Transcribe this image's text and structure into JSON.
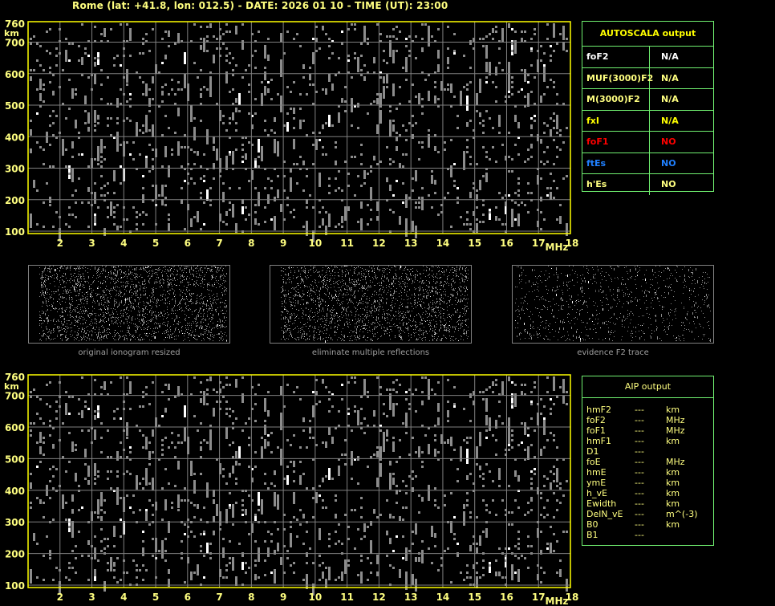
{
  "header": {
    "title": "Rome (lat: +41.8, lon: 012.5) - DATE: 2026 01 10 - TIME (UT): 23:00"
  },
  "colors": {
    "axis": "#ffff00",
    "grid": "#808080",
    "noise": "#8c8c8c",
    "table_border": "#70f070",
    "label": "#ffff80"
  },
  "chart_data": [
    {
      "type": "scatter",
      "name": "ionogram",
      "xlabel": "MHz",
      "ylabel": "km",
      "xlim": [
        1,
        18
      ],
      "ylim": [
        100,
        760
      ],
      "xticks": [
        "2",
        "3",
        "4",
        "5",
        "6",
        "7",
        "8",
        "9",
        "10",
        "11",
        "12",
        "13",
        "14",
        "15",
        "16",
        "17",
        "18"
      ],
      "yticks": [
        "100",
        "200",
        "300",
        "400",
        "500",
        "600",
        "700",
        "760"
      ],
      "grid": true
    },
    {
      "type": "scatter",
      "name": "ionogram-aip",
      "xlabel": "MHz",
      "ylabel": "km",
      "xlim": [
        1,
        18
      ],
      "ylim": [
        100,
        760
      ],
      "xticks": [
        "2",
        "3",
        "4",
        "5",
        "6",
        "7",
        "8",
        "9",
        "10",
        "11",
        "12",
        "13",
        "14",
        "15",
        "16",
        "17",
        "18"
      ],
      "yticks": [
        "100",
        "200",
        "300",
        "400",
        "500",
        "600",
        "700",
        "760"
      ],
      "grid": true
    }
  ],
  "thumbnails": [
    {
      "caption": "original ionogram resized"
    },
    {
      "caption": "eliminate multiple reflections"
    },
    {
      "caption": "evidence F2 trace"
    }
  ],
  "autoscala": {
    "title": "AUTOSCALA output",
    "rows": [
      {
        "param": "foF2",
        "value": "N/A",
        "color": "#ffffff",
        "vcolor": "#ffffff"
      },
      {
        "param": "MUF(3000)F2",
        "value": "N/A",
        "color": "#ffff80",
        "vcolor": "#ffff80"
      },
      {
        "param": "M(3000)F2",
        "value": "N/A",
        "color": "#ffff80",
        "vcolor": "#ffff80"
      },
      {
        "param": "fxI",
        "value": "N/A",
        "color": "#ffff00",
        "vcolor": "#ffff00"
      },
      {
        "param": "foF1",
        "value": "NO",
        "color": "#ff0000",
        "vcolor": "#ff0000"
      },
      {
        "param": "ftEs",
        "value": "NO",
        "color": "#2080ff",
        "vcolor": "#2080ff"
      },
      {
        "param": "h'Es",
        "value": "NO",
        "color": "#ffff80",
        "vcolor": "#ffff80"
      }
    ]
  },
  "aip": {
    "title": "AIP output",
    "rows": [
      {
        "param": "hmF2",
        "value": "---",
        "unit": "km"
      },
      {
        "param": "foF2",
        "value": "---",
        "unit": "MHz"
      },
      {
        "param": "foF1",
        "value": "---",
        "unit": "MHz"
      },
      {
        "param": "hmF1",
        "value": "---",
        "unit": "km"
      },
      {
        "param": "D1",
        "value": "---",
        "unit": ""
      },
      {
        "param": "foE",
        "value": "---",
        "unit": "MHz"
      },
      {
        "param": "hmE",
        "value": "---",
        "unit": "km"
      },
      {
        "param": "ymE",
        "value": "---",
        "unit": "km"
      },
      {
        "param": "h_vE",
        "value": "---",
        "unit": "km"
      },
      {
        "param": "Ewidth",
        "value": "---",
        "unit": "km"
      },
      {
        "param": "DelN_vE",
        "value": "---",
        "unit": "m^(-3)"
      },
      {
        "param": "B0",
        "value": "---",
        "unit": "km"
      },
      {
        "param": "B1",
        "value": "---",
        "unit": ""
      }
    ]
  }
}
